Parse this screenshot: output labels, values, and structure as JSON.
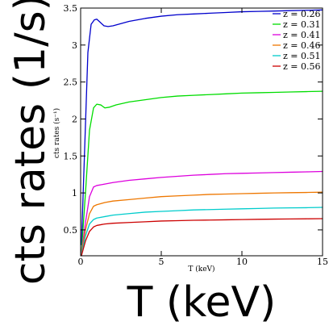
{
  "overlay_labels": {
    "y": "cts rates (1/s)",
    "x": "T (keV)"
  },
  "chart_data": {
    "type": "line",
    "title": "",
    "xlabel": "T (keV)",
    "ylabel": "cts rates (s⁻¹)",
    "xlim": [
      0,
      15
    ],
    "ylim": [
      0.15,
      3.5
    ],
    "xticks": [
      "0",
      "5",
      "10",
      "15"
    ],
    "yticks": [
      "0.5",
      "1",
      "1.5",
      "2",
      "2.5",
      "3",
      "3.5"
    ],
    "legend_position": "top-right",
    "series": [
      {
        "name": "z = 0.26",
        "color": "#0000cc",
        "x": [
          0.05,
          0.25,
          0.45,
          0.65,
          0.85,
          1.0,
          1.2,
          1.45,
          1.7,
          2.0,
          2.5,
          3,
          4,
          5,
          6,
          7,
          8,
          9,
          10,
          11,
          12,
          13,
          14,
          15
        ],
        "y": [
          0.3,
          1.6,
          2.9,
          3.28,
          3.34,
          3.35,
          3.31,
          3.26,
          3.25,
          3.26,
          3.29,
          3.32,
          3.36,
          3.39,
          3.41,
          3.42,
          3.43,
          3.44,
          3.45,
          3.455,
          3.46,
          3.465,
          3.47,
          3.475
        ]
      },
      {
        "name": "z = 0.31",
        "color": "#00dd00",
        "x": [
          0.05,
          0.3,
          0.55,
          0.8,
          1.0,
          1.25,
          1.5,
          1.8,
          2.2,
          3,
          4,
          5,
          6,
          7,
          8,
          9,
          10,
          11,
          12,
          13,
          14,
          15
        ],
        "y": [
          0.2,
          1.0,
          1.85,
          2.15,
          2.2,
          2.19,
          2.15,
          2.16,
          2.19,
          2.23,
          2.26,
          2.29,
          2.31,
          2.32,
          2.33,
          2.34,
          2.35,
          2.355,
          2.36,
          2.365,
          2.37,
          2.375
        ]
      },
      {
        "name": "z = 0.41",
        "color": "#dd00dd",
        "x": [
          0.05,
          0.3,
          0.55,
          0.8,
          1.0,
          1.5,
          2,
          3,
          4,
          5,
          6,
          7,
          8,
          9,
          10,
          11,
          12,
          13,
          14,
          15
        ],
        "y": [
          0.18,
          0.6,
          0.95,
          1.08,
          1.1,
          1.12,
          1.14,
          1.17,
          1.19,
          1.21,
          1.225,
          1.24,
          1.25,
          1.26,
          1.265,
          1.27,
          1.275,
          1.28,
          1.285,
          1.29
        ]
      },
      {
        "name": "z = 0.46",
        "color": "#ee7700",
        "x": [
          0.05,
          0.3,
          0.55,
          0.8,
          1.0,
          1.5,
          2,
          3,
          4,
          5,
          6,
          7,
          8,
          9,
          10,
          11,
          12,
          13,
          14,
          15
        ],
        "y": [
          0.17,
          0.5,
          0.72,
          0.82,
          0.84,
          0.87,
          0.89,
          0.91,
          0.93,
          0.95,
          0.96,
          0.97,
          0.98,
          0.985,
          0.99,
          0.995,
          1.0,
          1.003,
          1.006,
          1.01
        ]
      },
      {
        "name": "z = 0.51",
        "color": "#00cccc",
        "x": [
          0.05,
          0.3,
          0.55,
          0.8,
          1.0,
          1.5,
          2,
          3,
          4,
          5,
          6,
          7,
          8,
          9,
          10,
          11,
          12,
          13,
          14,
          15
        ],
        "y": [
          0.16,
          0.42,
          0.58,
          0.64,
          0.66,
          0.68,
          0.7,
          0.72,
          0.74,
          0.75,
          0.76,
          0.77,
          0.775,
          0.78,
          0.785,
          0.79,
          0.795,
          0.798,
          0.8,
          0.805
        ]
      },
      {
        "name": "z = 0.56",
        "color": "#cc0000",
        "x": [
          0.05,
          0.3,
          0.55,
          0.8,
          1.0,
          1.5,
          2,
          3,
          4,
          5,
          6,
          7,
          8,
          9,
          10,
          11,
          12,
          13,
          14,
          15
        ],
        "y": [
          0.15,
          0.35,
          0.48,
          0.54,
          0.56,
          0.58,
          0.59,
          0.6,
          0.61,
          0.62,
          0.625,
          0.63,
          0.633,
          0.636,
          0.64,
          0.643,
          0.646,
          0.648,
          0.65,
          0.652
        ]
      }
    ]
  }
}
